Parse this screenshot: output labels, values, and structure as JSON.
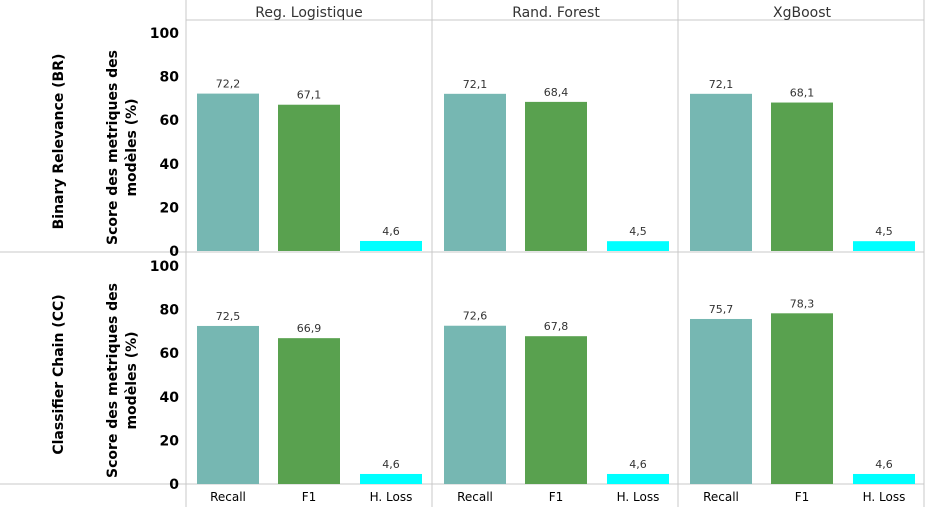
{
  "chart_data": {
    "type": "bar",
    "column_headers": [
      "Reg. Logistique",
      "Rand. Forest",
      "XgBoost"
    ],
    "row_headers": [
      "Binary Relevance (BR)",
      "Classifier Chain (CC)"
    ],
    "categories": [
      "Recall",
      "F1",
      "H. Loss"
    ],
    "ylabel_line1": "Score des metriques des",
    "ylabel_line2": "modèles (%)",
    "ylim": [
      0,
      100
    ],
    "yticks": [
      "0",
      "20",
      "40",
      "60",
      "80",
      "100"
    ],
    "colors": {
      "Recall": "#76b7b2",
      "F1": "#59a14f",
      "H. Loss": "#00ffff"
    },
    "panels": [
      [
        {
          "values": [
            72.2,
            67.1,
            4.6
          ],
          "labels": [
            "72,2",
            "67,1",
            "4,6"
          ]
        },
        {
          "values": [
            72.1,
            68.4,
            4.5
          ],
          "labels": [
            "72,1",
            "68,4",
            "4,5"
          ]
        },
        {
          "values": [
            72.1,
            68.1,
            4.5
          ],
          "labels": [
            "72,1",
            "68,1",
            "4,5"
          ]
        }
      ],
      [
        {
          "values": [
            72.5,
            66.9,
            4.6
          ],
          "labels": [
            "72,5",
            "66,9",
            "4,6"
          ]
        },
        {
          "values": [
            72.6,
            67.8,
            4.6
          ],
          "labels": [
            "72,6",
            "67,8",
            "4,6"
          ]
        },
        {
          "values": [
            75.7,
            78.3,
            4.6
          ],
          "labels": [
            "75,7",
            "78,3",
            "4,6"
          ]
        }
      ]
    ]
  }
}
